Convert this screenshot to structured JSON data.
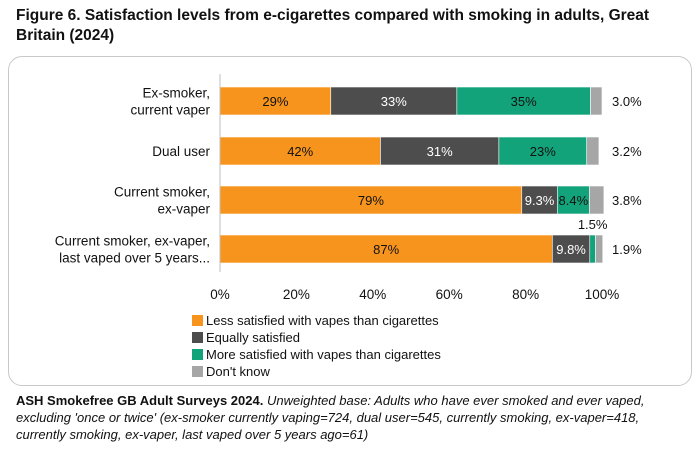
{
  "figure": {
    "title": "Figure 6. Satisfaction levels from e-cigarettes compared with smoking in adults, Great Britain (2024)",
    "source": "ASH Smokefree GB Adult Surveys 2024.",
    "note": "Unweighted base: Adults who have ever smoked and ever vaped, excluding 'once or twice' (ex-smoker currently vaping=724, dual user=545, currently smoking, ex-vaper=418, currently smoking, ex-vaper, last vaped over 5 years ago=61)"
  },
  "colors": {
    "less": "#F7941D",
    "equal": "#4D4D4D",
    "more": "#13A37A",
    "dont_know": "#A6A6A6"
  },
  "chart_data": {
    "type": "bar",
    "orientation": "horizontal",
    "stacked": true,
    "categories": [
      [
        "Ex-smoker,",
        "current vaper"
      ],
      [
        "Dual user"
      ],
      [
        "Current smoker,",
        "ex-vaper"
      ],
      [
        "Current smoker, ex-vaper,",
        "last vaped over 5 years..."
      ]
    ],
    "series": [
      {
        "name": "Less satisfied with vapes than cigarettes",
        "values": [
          29,
          42,
          79,
          87
        ],
        "labels": [
          "29%",
          "42%",
          "79%",
          "87%"
        ],
        "color_key": "less"
      },
      {
        "name": "Equally satisfied",
        "values": [
          33,
          31,
          9.3,
          9.8
        ],
        "labels": [
          "33%",
          "31%",
          "9.3%",
          "9.8%"
        ],
        "color_key": "equal"
      },
      {
        "name": "More satisfied with vapes than cigarettes",
        "values": [
          35,
          23,
          8.4,
          1.5
        ],
        "labels": [
          "35%",
          "23%",
          "8.4%",
          "1.5%"
        ],
        "color_key": "more"
      },
      {
        "name": "Don't know",
        "values": [
          3.0,
          3.2,
          3.8,
          1.9
        ],
        "labels": [
          "3.0%",
          "3.2%",
          "3.8%",
          "1.9%"
        ],
        "color_key": "dont_know"
      }
    ],
    "xlim": [
      0,
      100
    ],
    "xticks": [
      "0%",
      "20%",
      "40%",
      "60%",
      "80%",
      "100%"
    ],
    "grid": false,
    "legend_position": "bottom"
  }
}
